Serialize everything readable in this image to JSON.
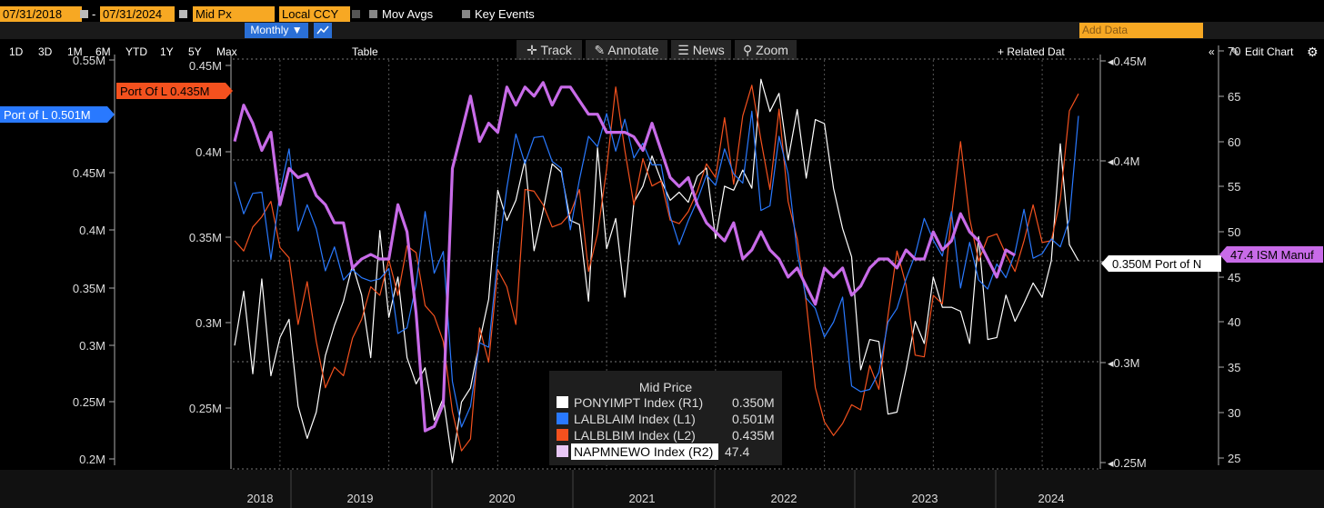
{
  "toolbar": {
    "start_date": "07/31/2018",
    "dash": "-",
    "end_date": "07/31/2024",
    "field": "Mid Px",
    "currency": "Local CCY",
    "mov_avgs": "Mov Avgs",
    "key_events": "Key Events"
  },
  "periods": [
    "1D",
    "3D",
    "1M",
    "6M",
    "YTD",
    "1Y",
    "5Y",
    "Max"
  ],
  "frequency": "Monthly ▼",
  "table_label": "Table",
  "related_data": "+ Related Dat",
  "add_data_placeholder": "Add Data",
  "edit_chart": "Edit Chart",
  "chart_tools": [
    "Track",
    "Annotate",
    "News",
    "Zoom"
  ],
  "colors": {
    "ponyimpt": "#ffffff",
    "lalblaim": "#2979ff",
    "lalblbim": "#f4511e",
    "napmnewo": "#c86be8",
    "accent": "#f7a823"
  },
  "chart_data": {
    "type": "line",
    "legend_title": "Mid Price",
    "x_ticks": [
      "2018",
      "2019",
      "2020",
      "2021",
      "2022",
      "2023",
      "2024"
    ],
    "x_start": "2018-08",
    "l1_ticks": [
      "0.55M",
      "0.45M",
      "0.4M",
      "0.35M",
      "0.3M",
      "0.25M",
      "0.2M"
    ],
    "l1_range": [
      0.2,
      0.55
    ],
    "l2_ticks": [
      "0.45M",
      "0.4M",
      "0.35M",
      "0.3M",
      "0.25M"
    ],
    "l2_range": [
      0.2,
      0.45
    ],
    "r1_ticks": [
      "0.45M",
      "0.4M",
      "0.35M",
      "0.3M",
      "0.25M"
    ],
    "r1_range": [
      0.25,
      0.45
    ],
    "r2_ticks": [
      "70",
      "65",
      "60",
      "55",
      "50",
      "45",
      "40",
      "35",
      "30",
      "25"
    ],
    "r2_range": [
      25,
      70
    ],
    "tags": {
      "l1": "Port of L 0.501M",
      "l2": "Port Of L 0.435M",
      "r1": "0.350M Port of N",
      "r2": "47.4 ISM Manuf"
    },
    "series": [
      {
        "name": "PONYIMPT Index",
        "axis": "(R1)",
        "last": "0.350M",
        "values": [
          0.308,
          0.335,
          0.294,
          0.341,
          0.293,
          0.312,
          0.321,
          0.278,
          0.262,
          0.275,
          0.303,
          0.318,
          0.33,
          0.348,
          0.333,
          0.302,
          0.365,
          0.322,
          0.342,
          0.302,
          0.289,
          0.297,
          0.271,
          0.282,
          0.25,
          0.28,
          0.287,
          0.31,
          0.331,
          0.385,
          0.37,
          0.38,
          0.4,
          0.355,
          0.375,
          0.398,
          0.394,
          0.37,
          0.368,
          0.33,
          0.406,
          0.356,
          0.371,
          0.332,
          0.379,
          0.387,
          0.402,
          0.39,
          0.38,
          0.384,
          0.379,
          0.392,
          0.396,
          0.361,
          0.387,
          0.385,
          0.395,
          0.386,
          0.44,
          0.424,
          0.433,
          0.4,
          0.425,
          0.391,
          0.42,
          0.418,
          0.386,
          0.366,
          0.352,
          0.296,
          0.311,
          0.31,
          0.274,
          0.275,
          0.296,
          0.32,
          0.309,
          0.342,
          0.327,
          0.327,
          0.325,
          0.309,
          0.362,
          0.311,
          0.312,
          0.333,
          0.32,
          0.329,
          0.339,
          0.332,
          0.35,
          0.408,
          0.358,
          0.35
        ]
      },
      {
        "name": "LALBLAIM Index",
        "axis": "(L1)",
        "last": "0.501M",
        "values": [
          0.443,
          0.415,
          0.433,
          0.434,
          0.375,
          0.434,
          0.472,
          0.4,
          0.423,
          0.402,
          0.365,
          0.386,
          0.357,
          0.366,
          0.359,
          0.356,
          0.358,
          0.367,
          0.31,
          0.315,
          0.353,
          0.417,
          0.363,
          0.382,
          0.268,
          0.228,
          0.246,
          0.302,
          0.298,
          0.377,
          0.438,
          0.485,
          0.459,
          0.482,
          0.483,
          0.461,
          0.455,
          0.401,
          0.445,
          0.483,
          0.474,
          0.503,
          0.47,
          0.498,
          0.464,
          0.477,
          0.458,
          0.458,
          0.413,
          0.388,
          0.409,
          0.427,
          0.449,
          0.44,
          0.472,
          0.45,
          0.442,
          0.505,
          0.418,
          0.422,
          0.483,
          0.45,
          0.381,
          0.341,
          0.332,
          0.307,
          0.32,
          0.342,
          0.264,
          0.259,
          0.261,
          0.276,
          0.32,
          0.332,
          0.358,
          0.379,
          0.411,
          0.392,
          0.378,
          0.417,
          0.35,
          0.39,
          0.357,
          0.349,
          0.371,
          0.359,
          0.381,
          0.419,
          0.376,
          0.38,
          0.393,
          0.386,
          0.41,
          0.501
        ]
      },
      {
        "name": "LALBLBIM Index",
        "axis": "(L2)",
        "last": "0.435M",
        "values": [
          0.349,
          0.343,
          0.357,
          0.363,
          0.372,
          0.345,
          0.339,
          0.3,
          0.325,
          0.29,
          0.263,
          0.275,
          0.27,
          0.292,
          0.303,
          0.322,
          0.317,
          0.338,
          0.317,
          0.346,
          0.342,
          0.311,
          0.305,
          0.29,
          0.249,
          0.226,
          0.233,
          0.298,
          0.278,
          0.332,
          0.322,
          0.3,
          0.379,
          0.378,
          0.37,
          0.357,
          0.359,
          0.365,
          0.379,
          0.331,
          0.353,
          0.391,
          0.439,
          0.402,
          0.37,
          0.397,
          0.381,
          0.384,
          0.361,
          0.359,
          0.366,
          0.378,
          0.394,
          0.386,
          0.421,
          0.382,
          0.422,
          0.44,
          0.408,
          0.379,
          0.426,
          0.372,
          0.35,
          0.313,
          0.263,
          0.243,
          0.235,
          0.242,
          0.253,
          0.25,
          0.276,
          0.262,
          0.305,
          0.343,
          0.323,
          0.282,
          0.281,
          0.317,
          0.312,
          0.363,
          0.407,
          0.362,
          0.337,
          0.351,
          0.353,
          0.341,
          0.331,
          0.349,
          0.37,
          0.348,
          0.349,
          0.373,
          0.425,
          0.435
        ]
      },
      {
        "name": "NAPMNEWO Index",
        "axis": "(R2)",
        "last": "47.4",
        "values": [
          60,
          64,
          62,
          59,
          61,
          53,
          57,
          56,
          56.4,
          54,
          53,
          51,
          51,
          46,
          47,
          47.5,
          47,
          47,
          53,
          50,
          41,
          28,
          28.5,
          31,
          57,
          61,
          65,
          60,
          62,
          61,
          66,
          64,
          66,
          65,
          66.5,
          64,
          66,
          66,
          64.5,
          63,
          63,
          61,
          61,
          61,
          60.5,
          59,
          62,
          59,
          56,
          55,
          56,
          53,
          51,
          50,
          49,
          51,
          47,
          48,
          50,
          48,
          47,
          45,
          46,
          44,
          42,
          46,
          45,
          46,
          43,
          44,
          46,
          47,
          47,
          46,
          48,
          47,
          47,
          50,
          48,
          49,
          52,
          50,
          49,
          47,
          45,
          48,
          47.4
        ]
      }
    ]
  }
}
